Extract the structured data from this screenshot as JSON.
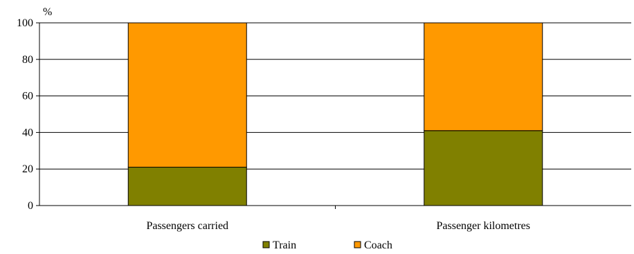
{
  "chart_data": {
    "type": "bar",
    "stacked": true,
    "unit_label": "%",
    "categories": [
      "Passengers carried",
      "Passenger kilometres"
    ],
    "series": [
      {
        "name": "Train",
        "color": "#808000",
        "values": [
          21,
          41
        ]
      },
      {
        "name": "Coach",
        "color": "#FF9900",
        "values": [
          79,
          59
        ]
      }
    ],
    "yticks": [
      0,
      20,
      40,
      60,
      80,
      100
    ],
    "ylim": [
      0,
      100
    ],
    "grid": true,
    "legend": "bottom-center"
  }
}
